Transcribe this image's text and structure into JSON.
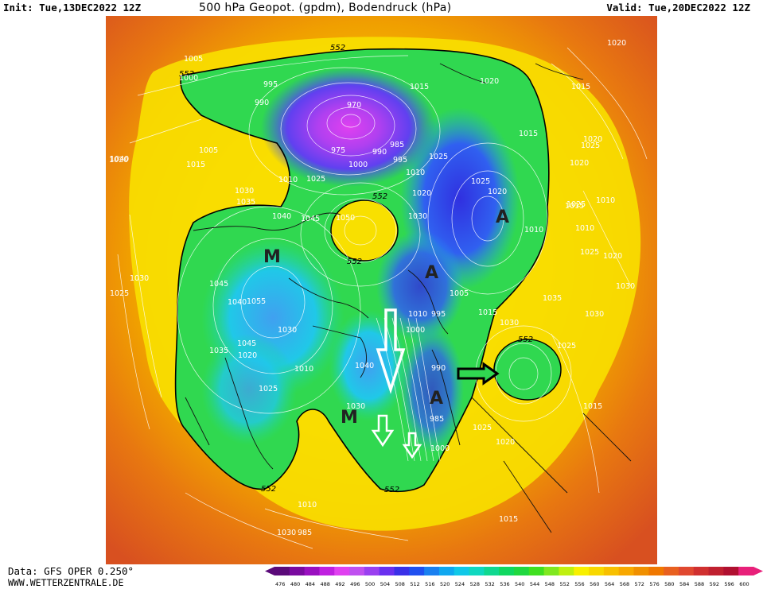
{
  "header": {
    "init": "Init: Tue,13DEC2022 12Z",
    "title": "500 hPa Geopot. (gpdm), Bodendruck (hPa)",
    "valid": "Valid: Tue,20DEC2022 12Z"
  },
  "footer": {
    "data_source": "Data: GFS OPER 0.250°",
    "website": "WWW.WETTERZENTRALE.DE"
  },
  "map": {
    "contour_label": "552",
    "pressure_systems": [
      "M",
      "M",
      "A",
      "A",
      "A"
    ],
    "pressure_labels": [
      "1005",
      "1000",
      "995",
      "990",
      "1015",
      "1020",
      "1005",
      "1015",
      "1020",
      "970",
      "975",
      "1000",
      "990",
      "985",
      "995",
      "1010",
      "1025",
      "1020",
      "1030",
      "1035",
      "1010",
      "1025",
      "1040",
      "1045",
      "1050",
      "1030",
      "1025",
      "1020",
      "1015",
      "1025",
      "1030",
      "1045",
      "1055",
      "1040",
      "1035",
      "1030",
      "1045",
      "1020",
      "1010",
      "1025",
      "1000",
      "1010",
      "995",
      "1005",
      "1015",
      "1030",
      "1040",
      "990",
      "985",
      "1000",
      "1025",
      "1020",
      "1015",
      "1035",
      "1030",
      "1025",
      "1015",
      "1010",
      "1020",
      "1025",
      "1020",
      "1030",
      "1030",
      "1010",
      "1015",
      "1020",
      "1010",
      "1025",
      "1020",
      "1015",
      "1010",
      "985",
      "1030",
      "1040",
      "1025"
    ]
  },
  "colorbar": {
    "ticks": [
      "476",
      "480",
      "484",
      "488",
      "492",
      "496",
      "500",
      "504",
      "508",
      "512",
      "516",
      "520",
      "524",
      "528",
      "532",
      "536",
      "540",
      "544",
      "548",
      "552",
      "556",
      "560",
      "564",
      "568",
      "572",
      "576",
      "580",
      "584",
      "588",
      "592",
      "596",
      "600"
    ],
    "colors": [
      "#5b0a7a",
      "#7a0aa0",
      "#9a10c0",
      "#c020e0",
      "#e040f0",
      "#c050f0",
      "#9a40f0",
      "#6a30f0",
      "#3a30e8",
      "#2050f0",
      "#1a80f0",
      "#10a8f0",
      "#10c8e8",
      "#10d8c0",
      "#10d890",
      "#10d860",
      "#20d840",
      "#40e020",
      "#80e820",
      "#c0f010",
      "#f8f000",
      "#f8d800",
      "#f8c000",
      "#f8a800",
      "#f09000",
      "#f07800",
      "#e86020",
      "#e04830",
      "#d03030",
      "#c02030",
      "#b01030",
      "#e8207a"
    ]
  },
  "annotations": {
    "arrows": [
      "south-arrow-large",
      "south-arrow-small-left",
      "south-arrow-small-right",
      "east-arrow"
    ]
  }
}
